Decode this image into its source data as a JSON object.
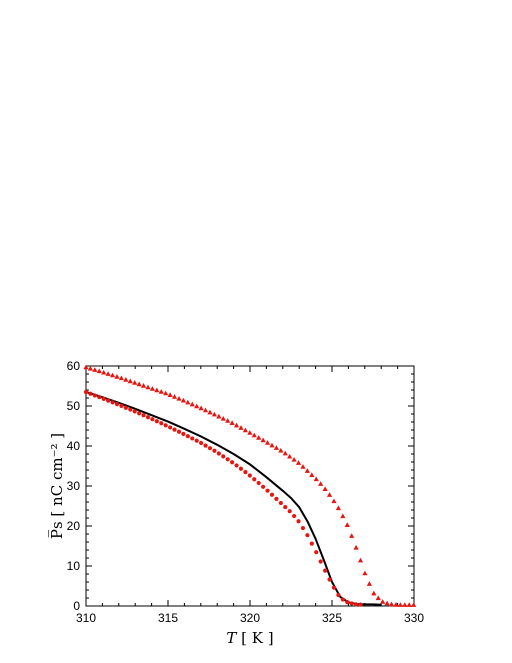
{
  "chart_data": {
    "type": "scatter",
    "xlabel": "T [ K ]",
    "ylabel": "P̅s [ nC cm⁻² ]",
    "xlim": [
      310,
      330
    ],
    "ylim": [
      0,
      60
    ],
    "xticks": [
      "310",
      "315",
      "320",
      "325",
      "330"
    ],
    "yticks": [
      "0",
      "10",
      "20",
      "30",
      "40",
      "50",
      "60"
    ],
    "grid": false,
    "series": [
      {
        "style": "line",
        "color": "#000000",
        "x": [
          310,
          311,
          312,
          313,
          314,
          315,
          316,
          317,
          318,
          319,
          320,
          321,
          322,
          322.5,
          323,
          323.5,
          324,
          324.5,
          325,
          325.5,
          326,
          326.5,
          327,
          327.5,
          328
        ],
        "y": [
          53.5,
          52.2,
          50.8,
          49.3,
          47.7,
          46.1,
          44.3,
          42.4,
          40.3,
          38.0,
          35.4,
          32.2,
          28.8,
          27.0,
          24.7,
          21.2,
          16.8,
          11.5,
          6.0,
          2.3,
          0.9,
          0.5,
          0.4,
          0.4,
          0.3
        ]
      },
      {
        "style": "circles",
        "color": "#e8140f",
        "x": [
          310,
          311,
          312,
          313,
          314,
          315,
          316,
          317,
          318,
          319,
          320,
          321,
          322,
          322.5,
          323,
          323.5,
          324,
          324.5,
          325,
          325.5,
          326,
          326.5,
          327
        ],
        "y": [
          53.5,
          51.9,
          50.3,
          48.6,
          46.8,
          44.9,
          42.9,
          40.8,
          38.4,
          35.7,
          32.6,
          29.1,
          25.3,
          23.4,
          21.0,
          17.7,
          13.8,
          9.5,
          5.4,
          2.0,
          0.8,
          0.4,
          0.3
        ]
      },
      {
        "style": "triangles",
        "color": "#e8140f",
        "x": [
          310,
          311,
          312,
          313,
          314,
          315,
          316,
          317,
          318,
          319,
          320,
          321,
          322,
          323,
          324,
          324.5,
          325,
          325.5,
          326,
          326.5,
          327,
          327.5,
          328,
          328.5,
          329,
          329.5,
          330
        ],
        "y": [
          59.7,
          58.5,
          57.2,
          55.8,
          54.4,
          53.0,
          51.3,
          49.5,
          47.6,
          45.6,
          43.3,
          41.0,
          38.6,
          35.7,
          31.9,
          29.7,
          27.0,
          23.8,
          19.7,
          14.3,
          8.3,
          3.4,
          1.2,
          0.5,
          0.3,
          0.3,
          0.3
        ]
      }
    ]
  }
}
